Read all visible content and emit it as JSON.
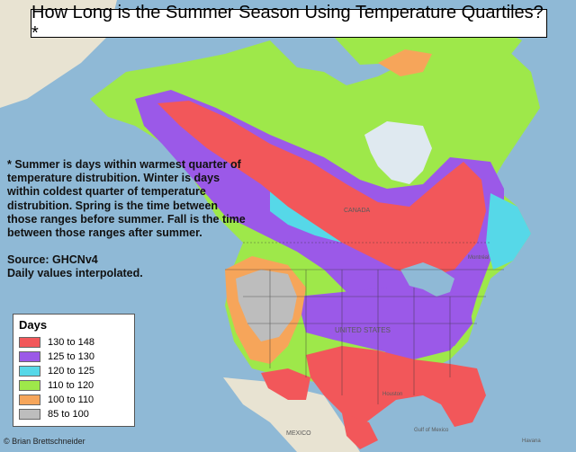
{
  "title": "How Long is the Summer Season Using Temperature Quartiles?*",
  "note": {
    "definition": "* Summer is days within warmest quarter of temperature distrubition. Winter is days within coldest quarter of temperature distrubition. Spring is the time between those ranges before summer. Fall is the time between those ranges after summer.",
    "source": "Source: GHCNv4",
    "method": "Daily values interpolated."
  },
  "legend": {
    "title": "Days",
    "items": [
      {
        "label": "130 to 148",
        "color": "#f2575a"
      },
      {
        "label": "125 to 130",
        "color": "#9b59e8"
      },
      {
        "label": "120 to 125",
        "color": "#56d8e8"
      },
      {
        "label": "110 to 120",
        "color": "#9ee84a"
      },
      {
        "label": "100 to 110",
        "color": "#f6a55a"
      },
      {
        "label": "85 to 100",
        "color": "#bdbdbd"
      }
    ]
  },
  "credit": "© Brian Brettschneider",
  "map_labels": {
    "canada": "CANADA",
    "united_states": "UNITED STATES",
    "mexico": "MEXICO",
    "gulf": "Gulf of Mexico",
    "havana": "Havana",
    "houston": "Houston",
    "montreal": "Montréal"
  },
  "colors": {
    "ocean": "#8fb9d6",
    "hudson_bay": "#dfe9f0",
    "land_outside": "#e8e3d2"
  }
}
